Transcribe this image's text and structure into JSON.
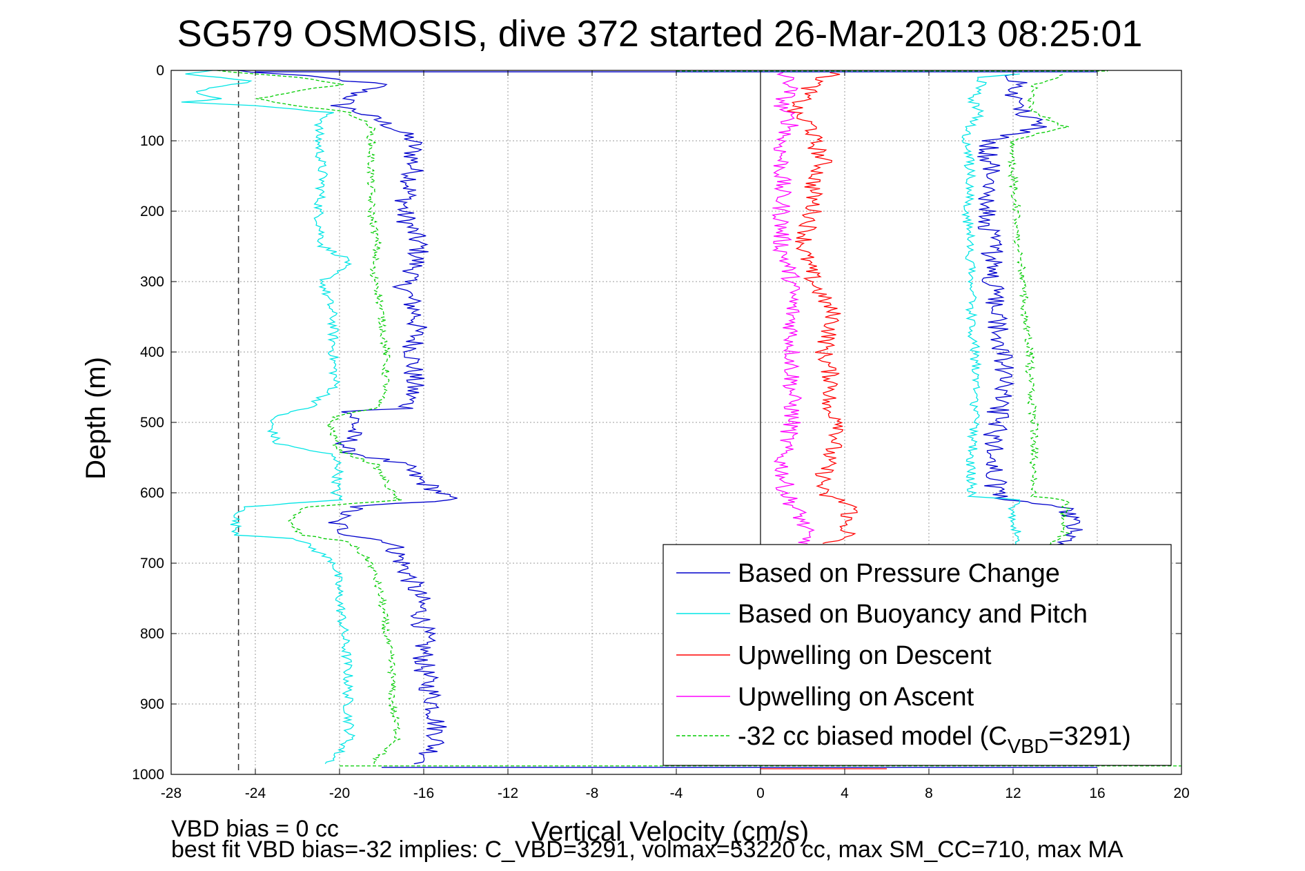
{
  "chart_data": {
    "type": "line",
    "title": "SG579 OSMOSIS, dive 372 started 26-Mar-2013 08:25:01",
    "xlabel": "Vertical Velocity (cm/s)",
    "ylabel": "Depth (m)",
    "xlim": [
      -28,
      20
    ],
    "ylim": [
      1000,
      0
    ],
    "xticks": [
      -28,
      -24,
      -20,
      -16,
      -12,
      -8,
      -4,
      0,
      4,
      8,
      12,
      16,
      20
    ],
    "yticks": [
      0,
      100,
      200,
      300,
      400,
      500,
      600,
      700,
      800,
      900,
      1000
    ],
    "grid": true,
    "legend_position": "bottom-right",
    "reference_line_x": -24.8,
    "series": [
      {
        "name": "Based on Pressure Change",
        "color": "#0000cc",
        "style": "solid",
        "descent": {
          "depth": [
            0,
            10,
            20,
            30,
            40,
            50,
            60,
            80,
            100,
            150,
            200,
            250,
            290,
            300,
            350,
            400,
            450,
            480,
            485,
            500,
            540,
            560,
            580,
            600,
            610,
            620,
            640,
            660,
            670,
            700,
            750,
            800,
            850,
            900,
            950,
            985
          ],
          "value": [
            -25,
            -21,
            -18,
            -19,
            -19.5,
            -20,
            -19,
            -17.5,
            -16.5,
            -16.5,
            -17,
            -16.2,
            -16.5,
            -17,
            -16.3,
            -16.5,
            -16.5,
            -16.8,
            -19.5,
            -19.2,
            -19.8,
            -17,
            -16.3,
            -15.2,
            -14.8,
            -19.2,
            -20.3,
            -19.5,
            -17.5,
            -17,
            -16.2,
            -16,
            -16,
            -15.5,
            -15.3,
            -16
          ]
        },
        "ascent": {
          "depth": [
            985,
            950,
            900,
            850,
            800,
            750,
            700,
            670,
            660,
            640,
            620,
            610,
            600,
            550,
            500,
            450,
            400,
            350,
            300,
            250,
            200,
            150,
            120,
            100,
            90,
            80,
            60,
            40,
            20,
            5
          ],
          "value": [
            12.5,
            11.5,
            11.5,
            11.5,
            11.2,
            11,
            11.5,
            14.5,
            15,
            14.8,
            14.5,
            11.5,
            11.2,
            11,
            11.2,
            11.5,
            11.5,
            11.2,
            11,
            11,
            10.8,
            11,
            10.8,
            11,
            12,
            13.5,
            12.5,
            12,
            12.5,
            12
          ]
        }
      },
      {
        "name": "Based on Buoyancy and Pitch",
        "color": "#00e5e5",
        "style": "solid",
        "descent": {
          "depth": [
            0,
            5,
            15,
            30,
            40,
            45,
            50,
            60,
            80,
            100,
            150,
            200,
            250,
            270,
            300,
            350,
            400,
            450,
            480,
            490,
            500,
            530,
            545,
            560,
            600,
            610,
            620,
            640,
            660,
            665,
            700,
            750,
            800,
            850,
            900,
            950,
            985
          ],
          "value": [
            -26,
            -27.5,
            -24,
            -27,
            -25.5,
            -27.5,
            -24,
            -20.5,
            -21,
            -21,
            -20.8,
            -21,
            -20.8,
            -19.5,
            -20.8,
            -20.3,
            -20.3,
            -20.2,
            -21.5,
            -23,
            -23.3,
            -23,
            -20.5,
            -20,
            -20.2,
            -20,
            -24.5,
            -25,
            -24.8,
            -22,
            -20.2,
            -20,
            -19.8,
            -19.6,
            -19.6,
            -19.5,
            -20.5
          ]
        },
        "ascent": {
          "depth": [
            985,
            950,
            900,
            850,
            800,
            750,
            700,
            670,
            660,
            640,
            620,
            610,
            605,
            600,
            550,
            500,
            450,
            400,
            350,
            300,
            250,
            200,
            150,
            100,
            85,
            60,
            40,
            25,
            10,
            5
          ],
          "value": [
            12,
            12,
            11.2,
            11.2,
            11,
            10.5,
            10.8,
            12,
            12.2,
            12,
            12,
            12.5,
            10,
            10,
            10,
            10.2,
            10.2,
            10.2,
            10,
            10,
            10,
            9.8,
            10,
            9.8,
            9.8,
            10.5,
            10,
            10.5,
            10.5,
            12.5
          ]
        }
      },
      {
        "name": "Upwelling on Descent",
        "color": "#ff0000",
        "style": "solid",
        "depth": [
          3,
          20,
          40,
          60,
          80,
          100,
          130,
          160,
          200,
          250,
          300,
          350,
          400,
          450,
          480,
          500,
          550,
          580,
          600,
          620,
          640,
          660,
          672
        ],
        "value": [
          3.5,
          2.5,
          2,
          1.5,
          2.5,
          2.5,
          3,
          2.5,
          2.5,
          2,
          2.5,
          3.5,
          3,
          3.5,
          3,
          4,
          3.2,
          3,
          2.8,
          4.5,
          4,
          4.2,
          3
        ]
      },
      {
        "name": "Upwelling on Ascent",
        "color": "#ff00ff",
        "style": "solid",
        "depth": [
          3,
          20,
          50,
          80,
          100,
          150,
          200,
          250,
          300,
          350,
          400,
          450,
          500,
          550,
          600,
          640,
          672
        ],
        "value": [
          1,
          1.5,
          1,
          1.5,
          1,
          1,
          1,
          1,
          1.5,
          1.5,
          1.5,
          1.5,
          1.5,
          1,
          1.2,
          2,
          2.2
        ]
      },
      {
        "name": "-32 cc biased model (C",
        "name_sub": "VBD",
        "name_end": "=3291)",
        "color": "#00cc00",
        "style": "dashed",
        "descent": {
          "depth": [
            0,
            10,
            20,
            40,
            50,
            60,
            80,
            100,
            150,
            200,
            250,
            290,
            300,
            350,
            400,
            450,
            480,
            490,
            500,
            540,
            560,
            600,
            610,
            620,
            640,
            660,
            670,
            700,
            750,
            800,
            850,
            900,
            950,
            985
          ],
          "value": [
            -26,
            -22,
            -20,
            -24,
            -22,
            -19.5,
            -18.5,
            -18.5,
            -18.5,
            -18.5,
            -18.2,
            -18.5,
            -18.2,
            -18,
            -17.8,
            -17.8,
            -18.3,
            -20,
            -20.5,
            -20,
            -18.3,
            -17.5,
            -17.2,
            -21.5,
            -22.5,
            -21.8,
            -19.5,
            -18.5,
            -18,
            -17.8,
            -17.5,
            -17.5,
            -17.2,
            -18.5
          ]
        },
        "ascent": {
          "depth": [
            985,
            950,
            900,
            850,
            800,
            750,
            700,
            670,
            660,
            640,
            620,
            610,
            605,
            600,
            550,
            500,
            450,
            400,
            350,
            300,
            250,
            200,
            150,
            100,
            80,
            60,
            40,
            20,
            5
          ],
          "value": [
            13,
            13.5,
            13,
            13,
            13,
            12.8,
            12.8,
            13.8,
            14.5,
            14.3,
            14.5,
            14.5,
            13,
            13,
            13,
            13,
            12.8,
            12.8,
            12.5,
            12.5,
            12.2,
            12.2,
            12,
            12,
            14.5,
            13,
            12.8,
            13,
            14.5
          ]
        }
      }
    ],
    "annotation_line1": "VBD bias = 0 cc",
    "annotation_line2": "best fit VBD bias=-32 implies: C_VBD=3291, volmax=53220 cc, max SM_CC=710, max MA"
  }
}
